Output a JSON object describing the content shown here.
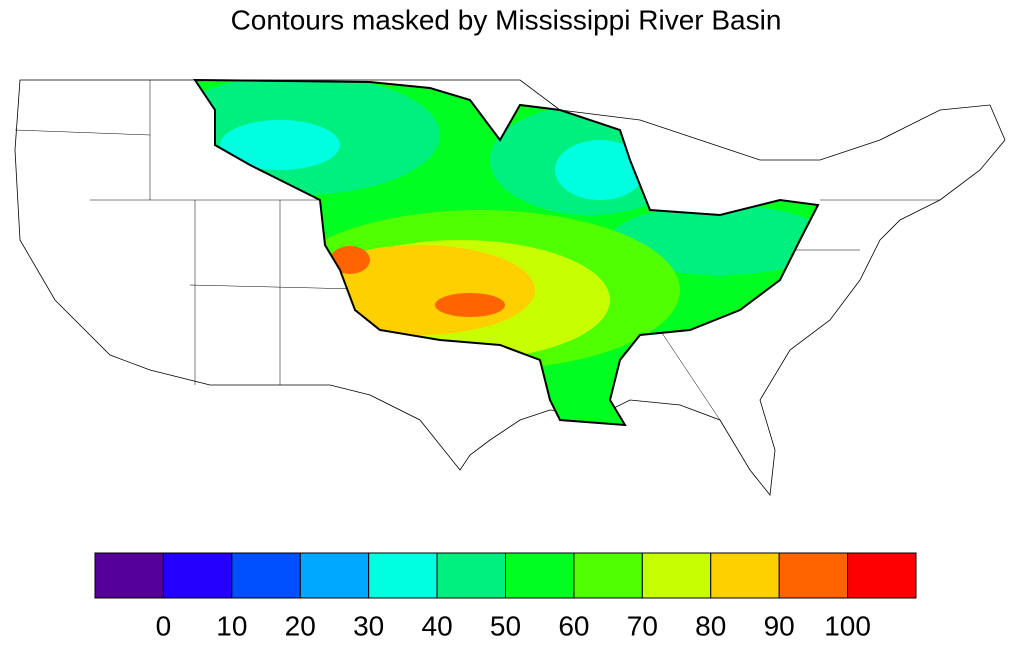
{
  "title": "Contours masked by Mississippi River Basin",
  "colorbar": {
    "colors": [
      "#56009a",
      "#2300ff",
      "#0050ff",
      "#00a8ff",
      "#00ffe0",
      "#00f080",
      "#00ff20",
      "#50ff00",
      "#c8ff00",
      "#ffd000",
      "#ff6400",
      "#ff0000"
    ],
    "levels": [
      0,
      10,
      20,
      30,
      40,
      50,
      60,
      70,
      80,
      90,
      100
    ]
  }
}
